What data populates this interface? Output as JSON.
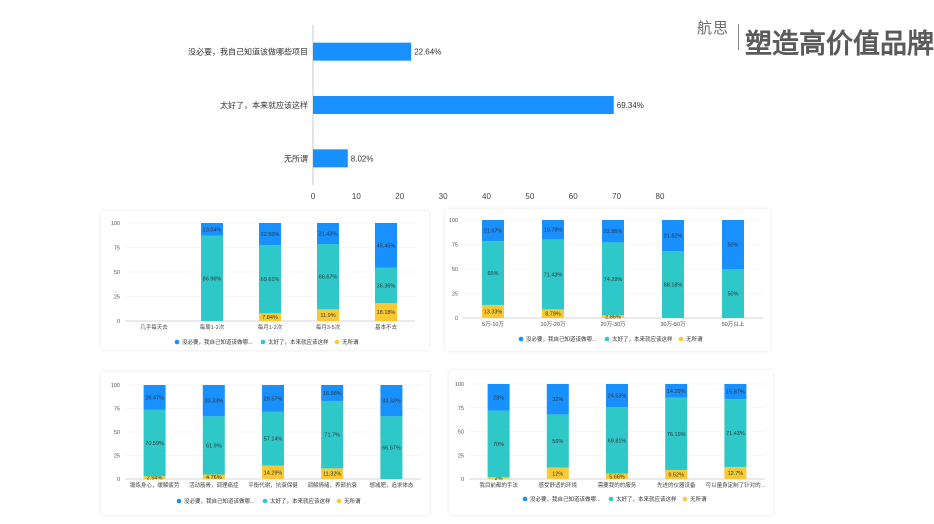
{
  "logo": {
    "mark": "航思",
    "slogan": "塑造高价值品牌"
  },
  "colors": {
    "blue": "#1890ff",
    "teal": "#2fc8c8",
    "yellow": "#fac933",
    "axis": "#c9c9c9",
    "text": "#333333"
  },
  "chart_data": [
    {
      "type": "bar",
      "orientation": "horizontal",
      "categories": [
        "没必要，我自己知道该做哪些项目",
        "太好了，本来就应该这样",
        "无所谓"
      ],
      "values": [
        22.64,
        69.34,
        8.02
      ],
      "value_labels": [
        "22.64%",
        "69.34%",
        "8.02%"
      ],
      "xlim": [
        0,
        80
      ],
      "xticks": [
        "0",
        "10",
        "20",
        "30",
        "40",
        "50",
        "60",
        "70",
        "80"
      ]
    },
    {
      "type": "bar",
      "stacked": true,
      "categories": [
        "几乎每天去",
        "每周1-2次",
        "每月1-2次",
        "每月3-5次",
        "基本不去"
      ],
      "series": [
        {
          "name": "无所谓",
          "values": [
            0,
            0,
            7.84,
            11.9,
            18.18
          ],
          "labels": [
            "",
            "",
            "7.84%",
            "11.9%",
            "18.18%"
          ]
        },
        {
          "name": "太好了，本来就应该这样",
          "values": [
            0,
            86.96,
            69.61,
            66.67,
            36.36
          ],
          "labels": [
            "",
            "86.96%",
            "69.61%",
            "66.67%",
            "36.36%"
          ]
        },
        {
          "name": "没必要，我自己知道该做哪...",
          "values": [
            0,
            13.04,
            22.55,
            21.43,
            45.45
          ],
          "labels": [
            "",
            "13.04%",
            "22.55%",
            "21.43%",
            "45.45%"
          ]
        }
      ],
      "ylim": [
        0,
        100
      ],
      "yticks": [
        "0",
        "25",
        "50",
        "75",
        "100"
      ]
    },
    {
      "type": "bar",
      "stacked": true,
      "categories": [
        "5万-10万",
        "10万-20万",
        "20万-30万",
        "30万-50万",
        "50万以上"
      ],
      "series": [
        {
          "name": "无所谓",
          "values": [
            13.33,
            8.79,
            2.86,
            0,
            0
          ],
          "labels": [
            "13.33%",
            "8.79%",
            "2.86%",
            "",
            ""
          ]
        },
        {
          "name": "太好了，本来就应该这样",
          "values": [
            65,
            71.43,
            74.29,
            68.18,
            50
          ],
          "labels": [
            "65%",
            "71.43%",
            "74.29%",
            "68.18%",
            "50%"
          ]
        },
        {
          "name": "没必要，我自己知道该做哪...",
          "values": [
            21.67,
            19.78,
            22.86,
            31.82,
            50
          ],
          "labels": [
            "21.67%",
            "19.78%",
            "22.86%",
            "31.82%",
            "50%"
          ]
        }
      ],
      "ylim": [
        0,
        100
      ],
      "yticks": [
        "0",
        "25",
        "50",
        "75",
        "100"
      ]
    },
    {
      "type": "bar",
      "stacked": true,
      "categories": [
        "锻炼身心，缓解疲劳",
        "活动筋骨，调理痛症",
        "平衡代谢，抗衰保健",
        "调解情绪，养颜抗衰",
        "想减肥，追求体态"
      ],
      "series": [
        {
          "name": "无所谓",
          "values": [
            2.94,
            4.76,
            14.29,
            11.32,
            0
          ],
          "labels": [
            "2.94%",
            "4.76%",
            "14.29%",
            "11.32%",
            ""
          ]
        },
        {
          "name": "太好了，本来就应该这样",
          "values": [
            70.59,
            61.9,
            57.14,
            71.7,
            66.67
          ],
          "labels": [
            "70.59%",
            "61.9%",
            "57.14%",
            "71.7%",
            "66.67%"
          ]
        },
        {
          "name": "没必要，我自己知道该做哪...",
          "values": [
            26.47,
            33.33,
            28.57,
            16.98,
            33.33
          ],
          "labels": [
            "26.47%",
            "33.33%",
            "28.57%",
            "16.98%",
            "33.33%"
          ]
        }
      ],
      "ylim": [
        0,
        100
      ],
      "yticks": [
        "0",
        "25",
        "50",
        "75",
        "100"
      ]
    },
    {
      "type": "bar",
      "stacked": true,
      "categories": [
        "我目前都的手法",
        "感受舒适的环境",
        "需要我的的服务",
        "先进的仪器设备",
        "可以量身定制了针对的..."
      ],
      "series": [
        {
          "name": "无所谓",
          "values": [
            2,
            12,
            5.66,
            9.52,
            12.7
          ],
          "labels": [
            "2%",
            "12%",
            "5.66%",
            "9.52%",
            "12.7%"
          ]
        },
        {
          "name": "太好了，本来就应该这样",
          "values": [
            70,
            56,
            69.81,
            76.19,
            71.43
          ],
          "labels": [
            "70%",
            "56%",
            "69.81%",
            "76.19%",
            "71.43%"
          ]
        },
        {
          "name": "没必要，我自己知道该做哪...",
          "values": [
            28,
            32,
            24.53,
            14.29,
            15.87
          ],
          "labels": [
            "28%",
            "32%",
            "24.53%",
            "14.29%",
            "15.87%"
          ]
        }
      ],
      "ylim": [
        0,
        100
      ],
      "yticks": [
        "0",
        "25",
        "50",
        "75",
        "100"
      ]
    }
  ]
}
